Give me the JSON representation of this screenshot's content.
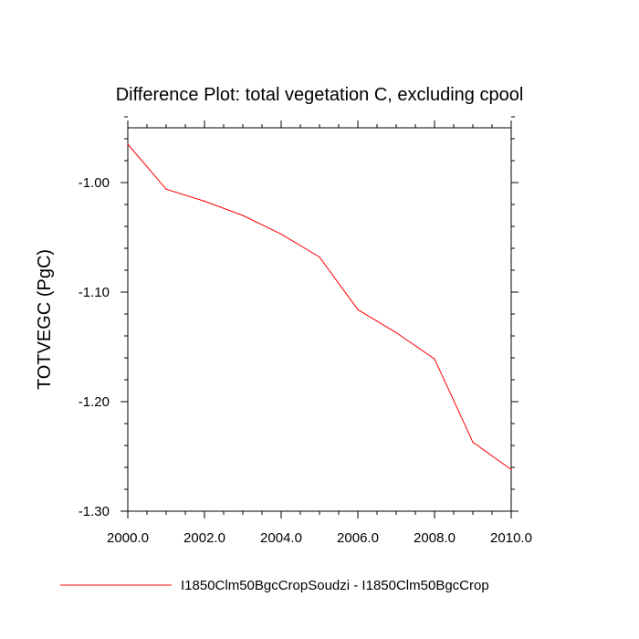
{
  "chart_data": {
    "type": "line",
    "title": "Difference Plot: total vegetation C, excluding cpool",
    "xlabel": "",
    "ylabel": "TOTVEGC  (PgC)",
    "xlim": [
      2000,
      2010
    ],
    "ylim": [
      -1.3,
      -0.95
    ],
    "x_ticks": [
      2000,
      2002,
      2004,
      2006,
      2008,
      2010
    ],
    "x_tick_labels": [
      "2000.0",
      "2002.0",
      "2004.0",
      "2006.0",
      "2008.0",
      "2010.0"
    ],
    "y_ticks": [
      -1.0,
      -1.1,
      -1.2,
      -1.3
    ],
    "y_tick_labels": [
      "-1.00",
      "-1.10",
      "-1.20",
      "-1.30"
    ],
    "grid": false,
    "legend_position": "bottom",
    "x": [
      2000,
      2001,
      2002,
      2003,
      2004,
      2005,
      2006,
      2007,
      2008,
      2009,
      2010
    ],
    "series": [
      {
        "name": "I1850Clm50BgcCropSoudzi - I1850Clm50BgcCrop",
        "color": "#ff0000",
        "values": [
          -0.965,
          -1.006,
          -1.017,
          -1.03,
          -1.047,
          -1.068,
          -1.116,
          -1.137,
          -1.161,
          -1.237,
          -1.262
        ]
      }
    ]
  }
}
